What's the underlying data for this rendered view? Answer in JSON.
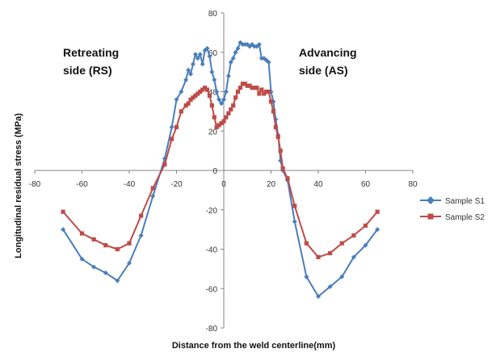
{
  "chart_data": {
    "type": "line",
    "title": "",
    "xlabel": "Distance from the weld centerline(mm)",
    "ylabel": "Longitudinal residual stress (MPa)",
    "xlim": [
      -80,
      80
    ],
    "ylim": [
      -80,
      80
    ],
    "x_ticks": [
      -80,
      -60,
      -40,
      -20,
      0,
      20,
      40,
      60,
      80
    ],
    "y_ticks": [
      -80,
      -60,
      -40,
      -20,
      0,
      20,
      40,
      60,
      80
    ],
    "grid": false,
    "legend_position": "right",
    "annotations": [
      {
        "lines": [
          "Retreating",
          "side (RS)"
        ]
      },
      {
        "lines": [
          "Advancing",
          "side (AS)"
        ]
      }
    ],
    "series": [
      {
        "name": "Sample S1",
        "color": "#4a7ebb",
        "marker": "diamond",
        "x": [
          -68,
          -60,
          -55,
          -50,
          -45,
          -40,
          -35,
          -30,
          -25,
          -22,
          -20,
          -18,
          -16,
          -15,
          -14,
          -13,
          -12,
          -11,
          -10,
          -9,
          -8,
          -7,
          -6,
          -5,
          -4,
          -3,
          -2,
          -1,
          0,
          1,
          2,
          3,
          4,
          5,
          6,
          7,
          8,
          9,
          10,
          11,
          12,
          13,
          14,
          15,
          16,
          17,
          18,
          19,
          20,
          21,
          22,
          23,
          24,
          25,
          27,
          30,
          35,
          40,
          45,
          50,
          55,
          60,
          65
        ],
        "y": [
          -30,
          -45,
          -49,
          -52,
          -56,
          -47,
          -33,
          -13,
          6,
          22,
          36,
          40,
          46,
          51,
          49,
          54,
          59,
          57,
          59,
          54,
          61,
          62,
          58,
          50,
          46,
          40,
          36,
          34,
          36,
          40,
          48,
          55,
          57,
          60,
          62,
          65,
          64,
          64,
          64,
          63,
          64,
          63,
          63,
          64,
          57,
          57,
          56,
          55,
          40,
          35,
          26,
          18,
          5,
          0,
          -5,
          -26,
          -54,
          -64,
          -59,
          -54,
          -44,
          -38,
          -30
        ]
      },
      {
        "name": "Sample S2",
        "color": "#be4b48",
        "marker": "square",
        "x": [
          -68,
          -60,
          -55,
          -50,
          -45,
          -40,
          -35,
          -30,
          -25,
          -22,
          -20,
          -18,
          -16,
          -15,
          -14,
          -13,
          -12,
          -11,
          -10,
          -9,
          -8,
          -7,
          -6,
          -5,
          -4,
          -3,
          -2,
          -1,
          0,
          1,
          2,
          3,
          4,
          5,
          6,
          7,
          8,
          9,
          10,
          11,
          12,
          13,
          14,
          15,
          16,
          17,
          18,
          19,
          20,
          21,
          22,
          23,
          24,
          25,
          27,
          30,
          35,
          40,
          45,
          50,
          55,
          60,
          65
        ],
        "y": [
          -21,
          -32,
          -35,
          -38,
          -40,
          -37,
          -23,
          -9,
          3,
          16,
          22,
          30,
          33,
          34,
          36,
          37,
          38,
          39,
          40,
          41,
          42,
          41,
          38,
          33,
          27,
          22,
          23,
          24,
          25,
          27,
          29,
          31,
          33,
          37,
          40,
          42,
          44,
          44,
          43,
          43,
          42,
          42,
          42,
          39,
          41,
          39,
          40,
          40,
          35,
          30,
          22,
          17,
          10,
          1,
          -4,
          -18,
          -37,
          -44,
          -42,
          -37,
          -33,
          -28,
          -21
        ]
      }
    ]
  }
}
